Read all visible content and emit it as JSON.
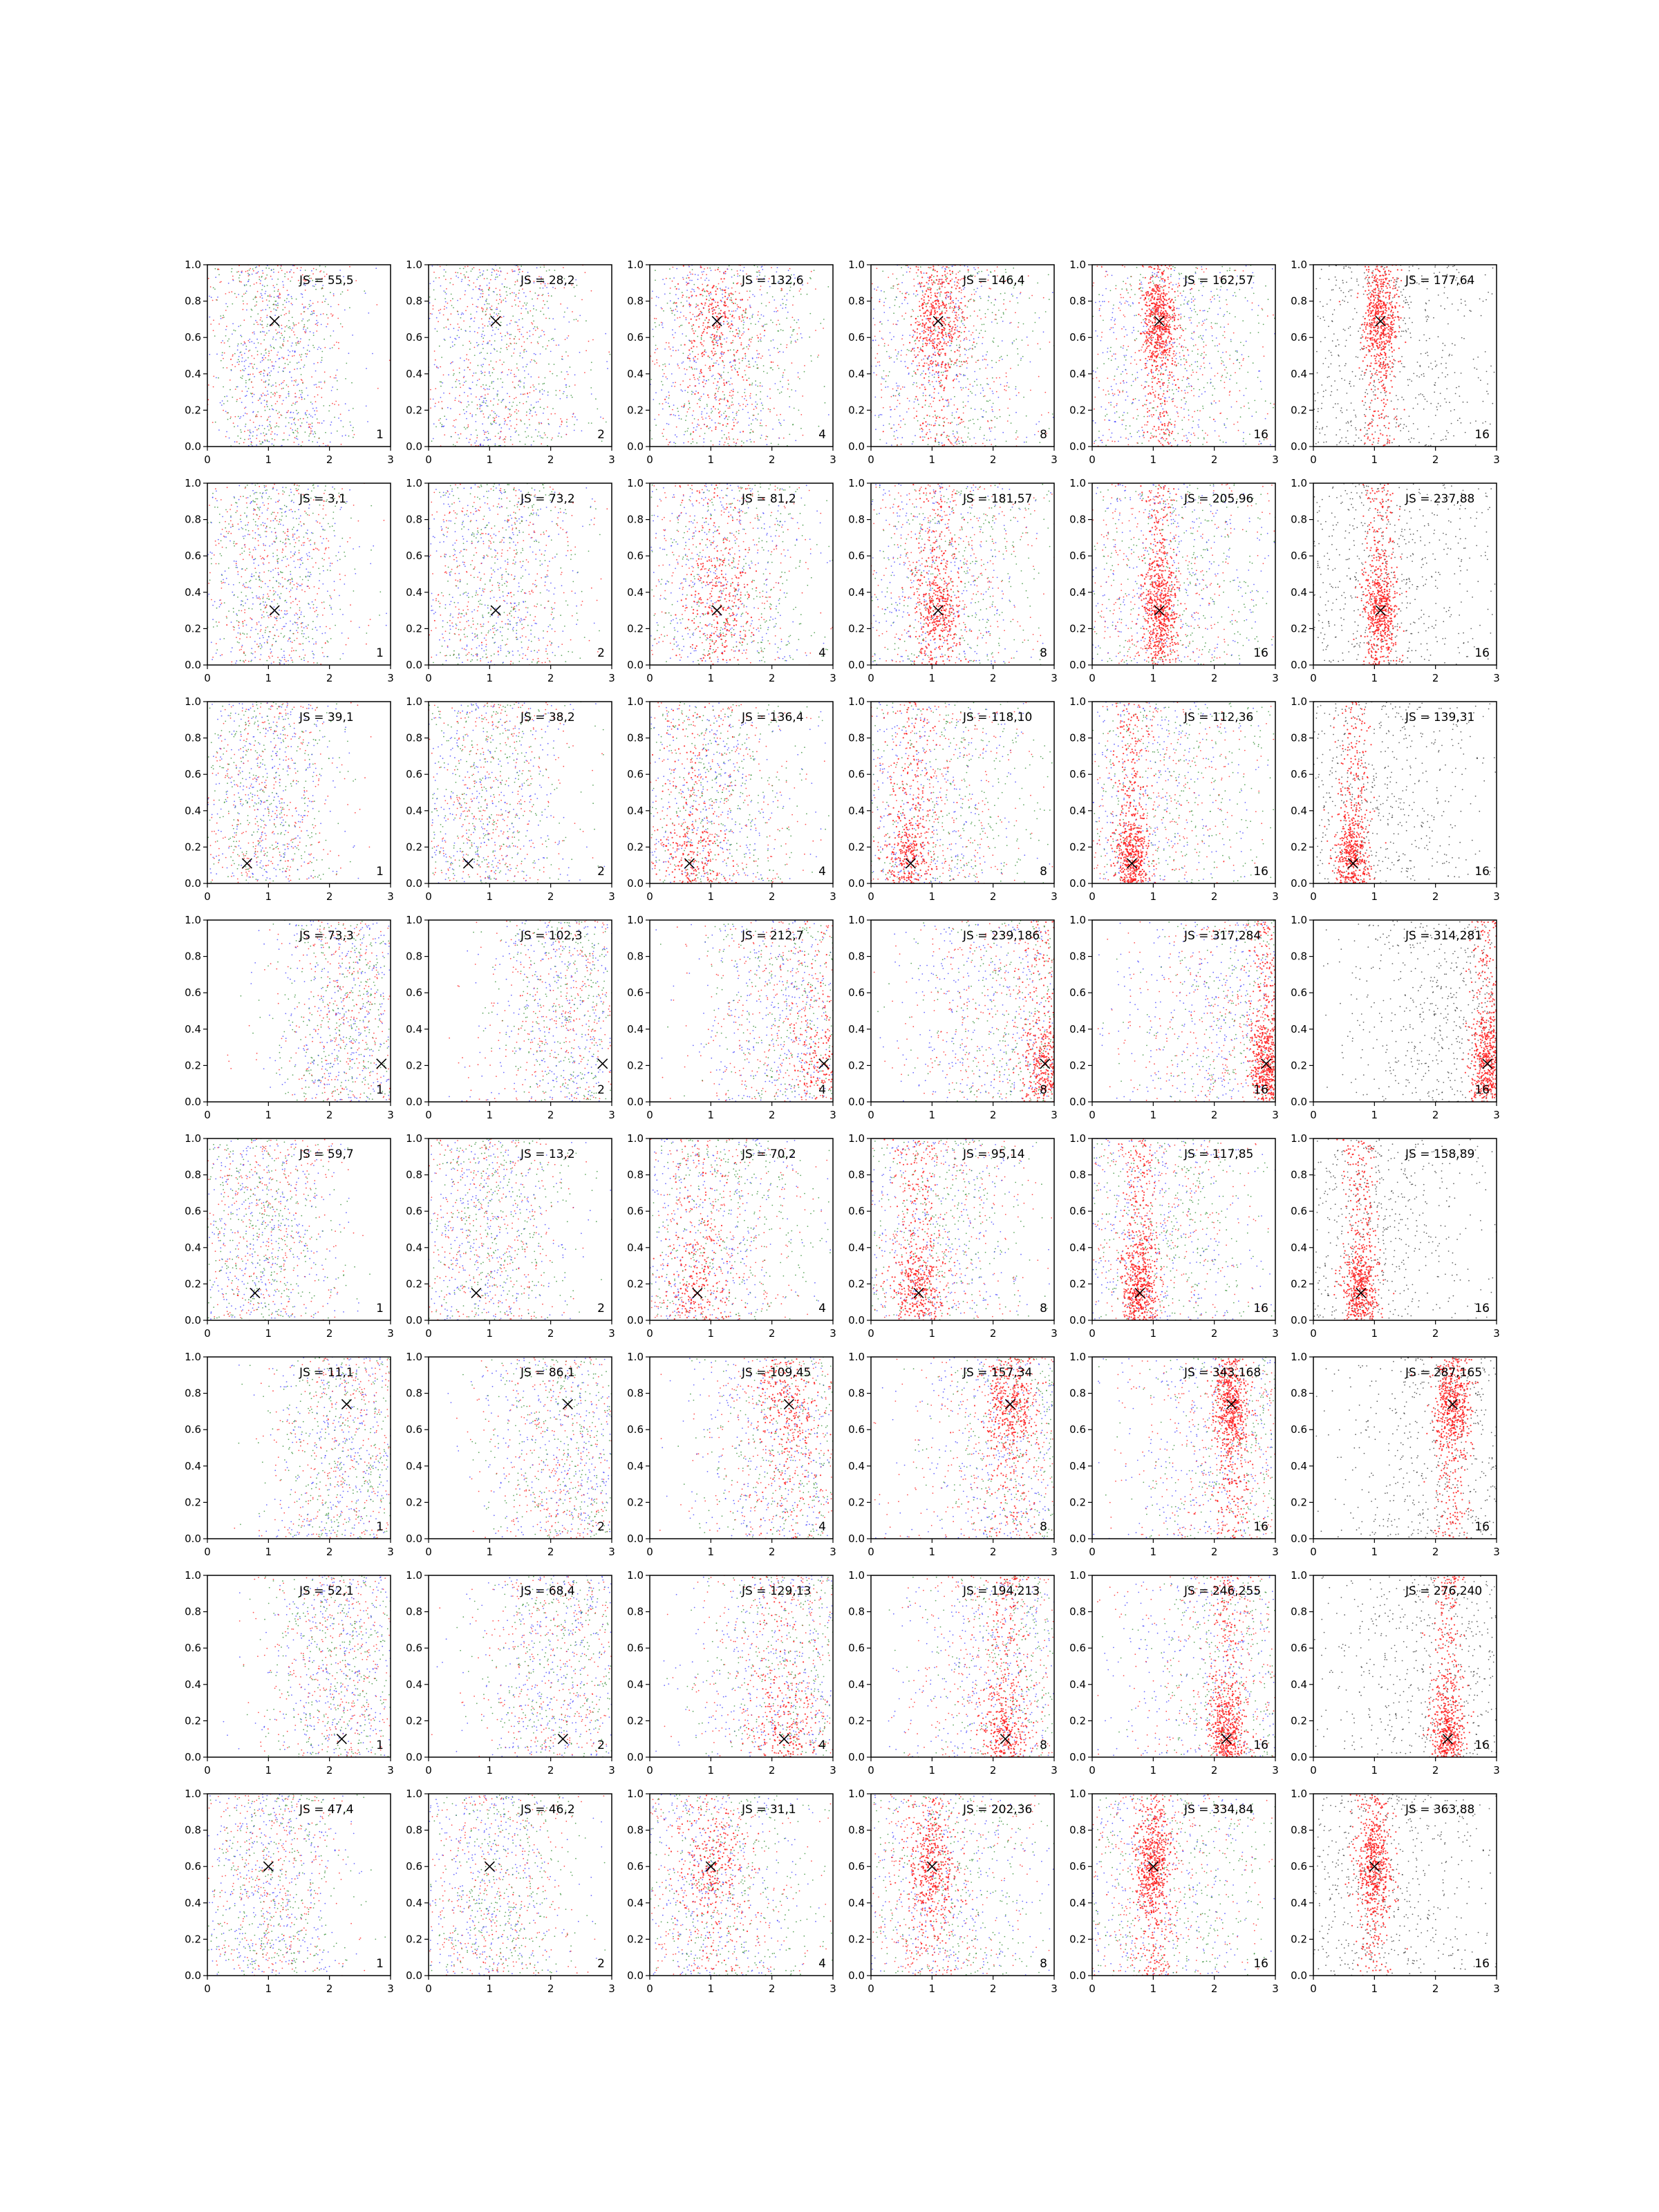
{
  "chart_data": {
    "type": "scatter",
    "grid": false,
    "rows": 8,
    "cols": 6,
    "xlim": [
      0,
      3
    ],
    "ylim": [
      0,
      1
    ],
    "xticks": [
      "0",
      "1",
      "2",
      "3"
    ],
    "yticks": [
      "0.0",
      "0.2",
      "0.4",
      "0.6",
      "0.8",
      "1.0"
    ],
    "colors": {
      "blue": "#3b3bff",
      "green": "#2e8b2e",
      "red": "#ff1a1a",
      "black": "#333333",
      "marker": "#000000"
    },
    "column_counts": [
      "1",
      "2",
      "4",
      "8",
      "16",
      "16"
    ],
    "marker": "x",
    "panels": [
      {
        "row": 1,
        "col": 1,
        "js": "JS = 55,5",
        "count": "1",
        "marker_x": 1.1,
        "marker_y": 0.69
      },
      {
        "row": 1,
        "col": 2,
        "js": "JS = 28,2",
        "count": "2",
        "marker_x": 1.1,
        "marker_y": 0.69
      },
      {
        "row": 1,
        "col": 3,
        "js": "JS = 132,6",
        "count": "4",
        "marker_x": 1.1,
        "marker_y": 0.69
      },
      {
        "row": 1,
        "col": 4,
        "js": "JS = 146,4",
        "count": "8",
        "marker_x": 1.1,
        "marker_y": 0.69
      },
      {
        "row": 1,
        "col": 5,
        "js": "JS = 162,57",
        "count": "16",
        "marker_x": 1.1,
        "marker_y": 0.69
      },
      {
        "row": 1,
        "col": 6,
        "js": "JS = 177,64",
        "count": "16",
        "marker_x": 1.1,
        "marker_y": 0.69
      },
      {
        "row": 2,
        "col": 1,
        "js": "JS = 3,1",
        "count": "1",
        "marker_x": 1.1,
        "marker_y": 0.3
      },
      {
        "row": 2,
        "col": 2,
        "js": "JS = 73,2",
        "count": "2",
        "marker_x": 1.1,
        "marker_y": 0.3
      },
      {
        "row": 2,
        "col": 3,
        "js": "JS = 81,2",
        "count": "4",
        "marker_x": 1.1,
        "marker_y": 0.3
      },
      {
        "row": 2,
        "col": 4,
        "js": "JS = 181,57",
        "count": "8",
        "marker_x": 1.1,
        "marker_y": 0.3
      },
      {
        "row": 2,
        "col": 5,
        "js": "JS = 205,96",
        "count": "16",
        "marker_x": 1.1,
        "marker_y": 0.3
      },
      {
        "row": 2,
        "col": 6,
        "js": "JS = 237,88",
        "count": "16",
        "marker_x": 1.1,
        "marker_y": 0.3
      },
      {
        "row": 3,
        "col": 1,
        "js": "JS = 39,1",
        "count": "1",
        "marker_x": 0.65,
        "marker_y": 0.11
      },
      {
        "row": 3,
        "col": 2,
        "js": "JS = 38,2",
        "count": "2",
        "marker_x": 0.65,
        "marker_y": 0.11
      },
      {
        "row": 3,
        "col": 3,
        "js": "JS = 136,4",
        "count": "4",
        "marker_x": 0.65,
        "marker_y": 0.11
      },
      {
        "row": 3,
        "col": 4,
        "js": "JS = 118,10",
        "count": "8",
        "marker_x": 0.65,
        "marker_y": 0.11
      },
      {
        "row": 3,
        "col": 5,
        "js": "JS = 112,36",
        "count": "16",
        "marker_x": 0.65,
        "marker_y": 0.11
      },
      {
        "row": 3,
        "col": 6,
        "js": "JS = 139,31",
        "count": "16",
        "marker_x": 0.65,
        "marker_y": 0.11
      },
      {
        "row": 4,
        "col": 1,
        "js": "JS = 73,3",
        "count": "1",
        "marker_x": 2.85,
        "marker_y": 0.21
      },
      {
        "row": 4,
        "col": 2,
        "js": "JS = 102,3",
        "count": "2",
        "marker_x": 2.85,
        "marker_y": 0.21
      },
      {
        "row": 4,
        "col": 3,
        "js": "JS = 212,7",
        "count": "4",
        "marker_x": 2.85,
        "marker_y": 0.21
      },
      {
        "row": 4,
        "col": 4,
        "js": "JS = 239,186",
        "count": "8",
        "marker_x": 2.85,
        "marker_y": 0.21
      },
      {
        "row": 4,
        "col": 5,
        "js": "JS = 317,284",
        "count": "16",
        "marker_x": 2.85,
        "marker_y": 0.21
      },
      {
        "row": 4,
        "col": 6,
        "js": "JS = 314,281",
        "count": "16",
        "marker_x": 2.85,
        "marker_y": 0.21
      },
      {
        "row": 5,
        "col": 1,
        "js": "JS = 59,7",
        "count": "1",
        "marker_x": 0.78,
        "marker_y": 0.15
      },
      {
        "row": 5,
        "col": 2,
        "js": "JS = 13,2",
        "count": "2",
        "marker_x": 0.78,
        "marker_y": 0.15
      },
      {
        "row": 5,
        "col": 3,
        "js": "JS = 70,2",
        "count": "4",
        "marker_x": 0.78,
        "marker_y": 0.15
      },
      {
        "row": 5,
        "col": 4,
        "js": "JS = 95,14",
        "count": "8",
        "marker_x": 0.78,
        "marker_y": 0.15
      },
      {
        "row": 5,
        "col": 5,
        "js": "JS = 117,85",
        "count": "16",
        "marker_x": 0.78,
        "marker_y": 0.15
      },
      {
        "row": 5,
        "col": 6,
        "js": "JS = 158,89",
        "count": "16",
        "marker_x": 0.78,
        "marker_y": 0.15
      },
      {
        "row": 6,
        "col": 1,
        "js": "JS = 11,1",
        "count": "1",
        "marker_x": 2.28,
        "marker_y": 0.74
      },
      {
        "row": 6,
        "col": 2,
        "js": "JS = 86,1",
        "count": "2",
        "marker_x": 2.28,
        "marker_y": 0.74
      },
      {
        "row": 6,
        "col": 3,
        "js": "JS = 109,45",
        "count": "4",
        "marker_x": 2.28,
        "marker_y": 0.74
      },
      {
        "row": 6,
        "col": 4,
        "js": "JS = 157,34",
        "count": "8",
        "marker_x": 2.28,
        "marker_y": 0.74
      },
      {
        "row": 6,
        "col": 5,
        "js": "JS = 343,168",
        "count": "16",
        "marker_x": 2.28,
        "marker_y": 0.74
      },
      {
        "row": 6,
        "col": 6,
        "js": "JS = 287,165",
        "count": "16",
        "marker_x": 2.28,
        "marker_y": 0.74
      },
      {
        "row": 7,
        "col": 1,
        "js": "JS = 52,1",
        "count": "1",
        "marker_x": 2.2,
        "marker_y": 0.1
      },
      {
        "row": 7,
        "col": 2,
        "js": "JS = 68,4",
        "count": "2",
        "marker_x": 2.2,
        "marker_y": 0.1
      },
      {
        "row": 7,
        "col": 3,
        "js": "JS = 129,13",
        "count": "4",
        "marker_x": 2.2,
        "marker_y": 0.1
      },
      {
        "row": 7,
        "col": 4,
        "js": "JS = 194,213",
        "count": "8",
        "marker_x": 2.2,
        "marker_y": 0.1
      },
      {
        "row": 7,
        "col": 5,
        "js": "JS = 246,255",
        "count": "16",
        "marker_x": 2.2,
        "marker_y": 0.1
      },
      {
        "row": 7,
        "col": 6,
        "js": "JS = 276,240",
        "count": "16",
        "marker_x": 2.2,
        "marker_y": 0.1
      },
      {
        "row": 8,
        "col": 1,
        "js": "JS = 47,4",
        "count": "1",
        "marker_x": 1.0,
        "marker_y": 0.6
      },
      {
        "row": 8,
        "col": 2,
        "js": "JS = 46,2",
        "count": "2",
        "marker_x": 1.0,
        "marker_y": 0.6
      },
      {
        "row": 8,
        "col": 3,
        "js": "JS = 31,1",
        "count": "4",
        "marker_x": 1.0,
        "marker_y": 0.6
      },
      {
        "row": 8,
        "col": 4,
        "js": "JS = 202,36",
        "count": "8",
        "marker_x": 1.0,
        "marker_y": 0.6
      },
      {
        "row": 8,
        "col": 5,
        "js": "JS = 334,84",
        "count": "16",
        "marker_x": 1.0,
        "marker_y": 0.6
      },
      {
        "row": 8,
        "col": 6,
        "js": "JS = 363,88",
        "count": "16",
        "marker_x": 1.0,
        "marker_y": 0.6
      }
    ]
  }
}
